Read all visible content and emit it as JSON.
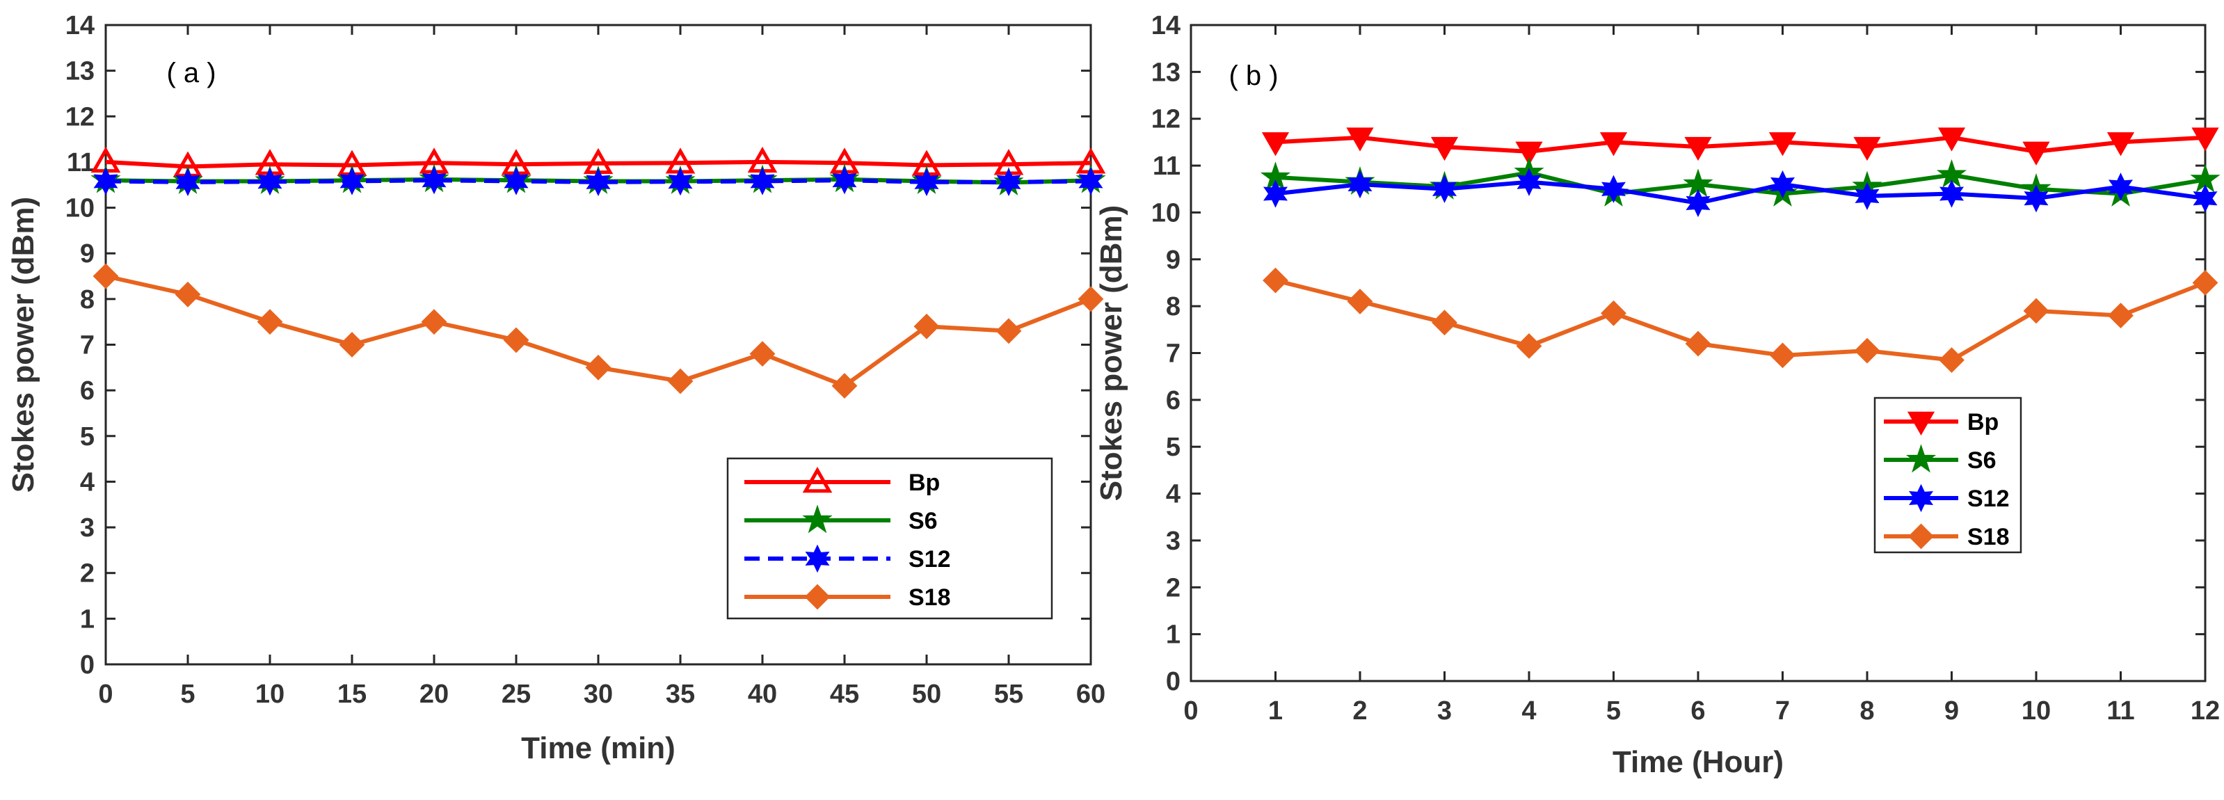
{
  "chart_data": [
    {
      "type": "line",
      "panel_label": "( a )",
      "xlabel": "Time (min)",
      "ylabel": "Stokes power (dBm)",
      "xlim": [
        0,
        60
      ],
      "ylim": [
        0,
        14
      ],
      "xticks": [
        0,
        5,
        10,
        15,
        20,
        25,
        30,
        35,
        40,
        45,
        50,
        55,
        60
      ],
      "yticks": [
        0,
        1,
        2,
        3,
        4,
        5,
        6,
        7,
        8,
        9,
        10,
        11,
        12,
        13,
        14
      ],
      "legend_position": "bottom-right",
      "x": [
        0,
        5,
        10,
        15,
        20,
        25,
        30,
        35,
        40,
        45,
        50,
        55,
        60
      ],
      "series": [
        {
          "name": "Bp",
          "color": "#ff0000",
          "marker": "triangle-up",
          "dashed": false,
          "values": [
            11.0,
            10.9,
            10.95,
            10.93,
            10.98,
            10.95,
            10.97,
            10.98,
            11.0,
            10.98,
            10.93,
            10.95,
            10.98
          ]
        },
        {
          "name": "S6",
          "color": "#008000",
          "marker": "star",
          "dashed": false,
          "values": [
            10.6,
            10.58,
            10.58,
            10.6,
            10.62,
            10.6,
            10.58,
            10.58,
            10.6,
            10.62,
            10.58,
            10.55,
            10.6
          ]
        },
        {
          "name": "S12",
          "color": "#0000ff",
          "marker": "star6",
          "dashed": true,
          "values": [
            10.58,
            10.56,
            10.57,
            10.58,
            10.6,
            10.58,
            10.56,
            10.57,
            10.58,
            10.6,
            10.56,
            10.56,
            10.58
          ]
        },
        {
          "name": "S18",
          "color": "#e8641e",
          "marker": "diamond",
          "dashed": false,
          "values": [
            8.5,
            8.1,
            7.5,
            7.0,
            7.5,
            7.1,
            6.5,
            6.2,
            6.8,
            6.1,
            7.4,
            7.3,
            8.0
          ]
        }
      ]
    },
    {
      "type": "line",
      "panel_label": "( b )",
      "xlabel": "Time (Hour)",
      "ylabel": "Stokes power (dBm)",
      "xlim": [
        0,
        12
      ],
      "ylim": [
        0,
        14
      ],
      "xticks": [
        0,
        1,
        2,
        3,
        4,
        5,
        6,
        7,
        8,
        9,
        10,
        11,
        12
      ],
      "yticks": [
        0,
        1,
        2,
        3,
        4,
        5,
        6,
        7,
        8,
        9,
        10,
        11,
        12,
        13,
        14
      ],
      "legend_position": "center-right",
      "x": [
        1,
        2,
        3,
        4,
        5,
        6,
        7,
        8,
        9,
        10,
        11,
        12
      ],
      "series": [
        {
          "name": "Bp",
          "color": "#ff0000",
          "marker": "triangle-down",
          "dashed": false,
          "values": [
            11.5,
            11.6,
            11.4,
            11.3,
            11.5,
            11.4,
            11.5,
            11.4,
            11.6,
            11.3,
            11.5,
            11.6
          ]
        },
        {
          "name": "S6",
          "color": "#008000",
          "marker": "star",
          "dashed": false,
          "values": [
            10.75,
            10.65,
            10.55,
            10.85,
            10.4,
            10.6,
            10.4,
            10.55,
            10.8,
            10.5,
            10.4,
            10.7
          ]
        },
        {
          "name": "S12",
          "color": "#0000ff",
          "marker": "star6",
          "dashed": false,
          "values": [
            10.4,
            10.6,
            10.5,
            10.65,
            10.5,
            10.2,
            10.6,
            10.35,
            10.4,
            10.3,
            10.55,
            10.3
          ]
        },
        {
          "name": "S18",
          "color": "#e8641e",
          "marker": "diamond",
          "dashed": false,
          "values": [
            8.55,
            8.1,
            7.65,
            7.15,
            7.85,
            7.2,
            6.95,
            7.05,
            6.85,
            7.9,
            7.8,
            8.5
          ]
        }
      ]
    }
  ]
}
